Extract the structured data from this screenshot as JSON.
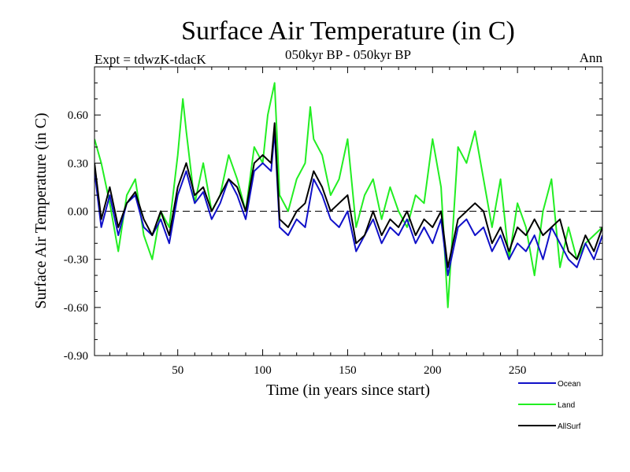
{
  "chart_data": {
    "type": "line",
    "title": "Surface Air Temperature (in C)",
    "subtitle": "050kyr BP - 050kyr BP",
    "experiment": "Expt = tdwzK-tdacK",
    "period": "Ann",
    "xlabel": "Time (in years since start)",
    "ylabel": "Surface Air Temperature (in C)",
    "xlim": [
      1,
      300
    ],
    "ylim": [
      -0.9,
      0.9
    ],
    "x_ticks": [
      50,
      100,
      150,
      200,
      250
    ],
    "x_tick_labels": [
      "50",
      "100",
      "150",
      "200",
      "250"
    ],
    "y_ticks": [
      -0.9,
      -0.6,
      -0.3,
      0.0,
      0.3,
      0.6
    ],
    "y_tick_labels": [
      "-0.90",
      "-0.60",
      "-0.30",
      "0.00",
      "0.30",
      "0.60"
    ],
    "zero_line": "dashed",
    "legend_position": "bottom-right",
    "series": [
      {
        "name": "Ocean",
        "color": "#1010c8",
        "x": [
          1,
          5,
          10,
          15,
          20,
          25,
          30,
          35,
          40,
          45,
          50,
          55,
          60,
          65,
          70,
          75,
          80,
          85,
          90,
          95,
          100,
          105,
          107,
          110,
          115,
          120,
          125,
          130,
          135,
          140,
          145,
          150,
          155,
          160,
          165,
          170,
          175,
          180,
          185,
          190,
          195,
          200,
          205,
          209,
          215,
          220,
          225,
          230,
          235,
          240,
          245,
          250,
          255,
          260,
          265,
          270,
          275,
          280,
          285,
          290,
          295,
          300
        ],
        "values": [
          0.25,
          -0.1,
          0.1,
          -0.15,
          0.05,
          0.1,
          -0.1,
          -0.15,
          -0.05,
          -0.2,
          0.1,
          0.25,
          0.05,
          0.12,
          -0.05,
          0.05,
          0.2,
          0.1,
          -0.05,
          0.25,
          0.3,
          0.25,
          0.5,
          -0.1,
          -0.15,
          -0.05,
          -0.1,
          0.2,
          0.1,
          -0.05,
          -0.1,
          0.0,
          -0.25,
          -0.15,
          -0.05,
          -0.2,
          -0.1,
          -0.15,
          -0.05,
          -0.2,
          -0.1,
          -0.2,
          -0.05,
          -0.4,
          -0.1,
          -0.05,
          -0.15,
          -0.1,
          -0.25,
          -0.15,
          -0.3,
          -0.2,
          -0.25,
          -0.15,
          -0.3,
          -0.1,
          -0.2,
          -0.3,
          -0.35,
          -0.2,
          -0.3,
          -0.15
        ]
      },
      {
        "name": "Land",
        "color": "#22ee22",
        "x": [
          1,
          5,
          10,
          15,
          20,
          25,
          30,
          35,
          40,
          45,
          50,
          53,
          55,
          60,
          65,
          70,
          75,
          80,
          85,
          90,
          95,
          100,
          103,
          107,
          110,
          115,
          120,
          125,
          128,
          130,
          135,
          140,
          145,
          150,
          155,
          160,
          165,
          170,
          175,
          180,
          185,
          190,
          195,
          200,
          205,
          209,
          215,
          220,
          225,
          230,
          235,
          240,
          245,
          250,
          255,
          260,
          265,
          270,
          275,
          280,
          285,
          290,
          295,
          300
        ],
        "values": [
          0.45,
          0.3,
          0.05,
          -0.25,
          0.1,
          0.2,
          -0.15,
          -0.3,
          0.0,
          -0.1,
          0.35,
          0.7,
          0.5,
          0.05,
          0.3,
          0.0,
          0.1,
          0.35,
          0.2,
          0.0,
          0.4,
          0.3,
          0.6,
          0.8,
          0.1,
          0.0,
          0.2,
          0.3,
          0.65,
          0.45,
          0.35,
          0.1,
          0.2,
          0.45,
          -0.1,
          0.1,
          0.2,
          -0.05,
          0.15,
          0.0,
          -0.1,
          0.1,
          0.05,
          0.45,
          0.15,
          -0.6,
          0.4,
          0.3,
          0.5,
          0.2,
          -0.1,
          0.2,
          -0.3,
          0.05,
          -0.1,
          -0.4,
          0.0,
          0.2,
          -0.35,
          -0.1,
          -0.3,
          -0.2,
          -0.15,
          -0.1
        ]
      },
      {
        "name": "AllSurf",
        "color": "#000000",
        "x": [
          1,
          5,
          10,
          15,
          20,
          25,
          30,
          35,
          40,
          45,
          50,
          55,
          60,
          65,
          70,
          75,
          80,
          85,
          90,
          95,
          100,
          105,
          107,
          110,
          115,
          120,
          125,
          130,
          135,
          140,
          145,
          150,
          155,
          160,
          165,
          170,
          175,
          180,
          185,
          190,
          195,
          200,
          205,
          209,
          215,
          220,
          225,
          230,
          235,
          240,
          245,
          250,
          255,
          260,
          265,
          270,
          275,
          280,
          285,
          290,
          295,
          300
        ],
        "values": [
          0.3,
          -0.05,
          0.15,
          -0.1,
          0.05,
          0.12,
          -0.05,
          -0.15,
          0.0,
          -0.15,
          0.15,
          0.3,
          0.1,
          0.15,
          0.0,
          0.1,
          0.2,
          0.15,
          0.0,
          0.3,
          0.35,
          0.3,
          0.55,
          -0.05,
          -0.1,
          0.0,
          0.05,
          0.25,
          0.15,
          0.0,
          0.05,
          0.1,
          -0.2,
          -0.15,
          0.0,
          -0.15,
          -0.05,
          -0.1,
          0.0,
          -0.15,
          -0.05,
          -0.1,
          0.0,
          -0.35,
          -0.05,
          0.0,
          0.05,
          0.0,
          -0.2,
          -0.1,
          -0.25,
          -0.1,
          -0.15,
          -0.05,
          -0.15,
          -0.1,
          -0.05,
          -0.25,
          -0.3,
          -0.15,
          -0.25,
          -0.1
        ]
      }
    ]
  }
}
